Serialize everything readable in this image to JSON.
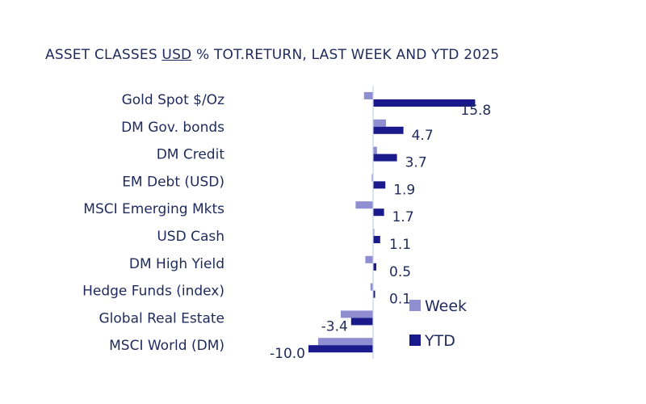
{
  "chart_data": {
    "type": "bar",
    "orientation": "horizontal",
    "title": {
      "prefix": "ASSET CLASSES ",
      "underlined": "USD",
      "suffix": " % TOT.RETURN, LAST WEEK AND YTD 2025"
    },
    "categories": [
      "Gold Spot  $/Oz",
      "DM Gov. bonds",
      "DM Credit",
      "EM Debt (USD)",
      "MSCI Emerging Mkts",
      "USD Cash",
      "DM High Yield",
      "Hedge Funds (index)",
      "Global Real Estate",
      "MSCI World (DM)"
    ],
    "series": [
      {
        "name": "Week",
        "color": "#8e8ed0",
        "values": [
          -1.4,
          2.0,
          0.6,
          -0.2,
          -2.7,
          0.1,
          -1.2,
          -0.4,
          -5.0,
          -8.5
        ]
      },
      {
        "name": "YTD",
        "color": "#1a1a8c",
        "values": [
          15.8,
          4.7,
          3.7,
          1.9,
          1.7,
          1.1,
          0.5,
          0.1,
          -3.4,
          -10.0
        ],
        "labels": [
          "15.8",
          "4.7",
          "3.7",
          "1.9",
          "1.7",
          "1.1",
          "0.5",
          "0.1",
          "-3.4",
          "-10.0"
        ]
      }
    ],
    "xlim": [
      -10.0,
      15.8
    ],
    "grid": false,
    "legend_position": "bottom-right"
  }
}
